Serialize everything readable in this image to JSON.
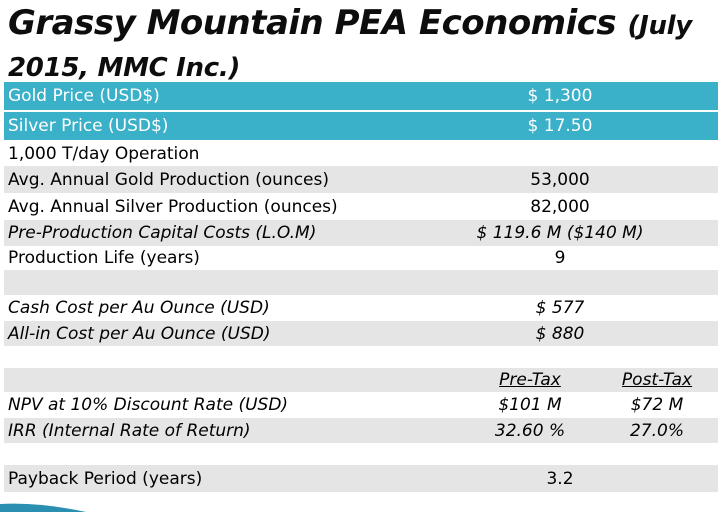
{
  "slide": {
    "title_line1": "Grassy Mountain PEA Economics",
    "title_suffix": "(July",
    "title_line2": "2015, MMC Inc.)"
  },
  "rows": {
    "gold_price": {
      "label": "Gold Price (USD$)",
      "value": "$ 1,300"
    },
    "silver_price": {
      "label": "Silver Price (USD$)",
      "value": "$ 17.50"
    },
    "operation": {
      "label": "1,000 T/day Operation"
    },
    "gold_production": {
      "label": "Avg. Annual Gold Production (ounces)",
      "value": "53,000"
    },
    "silver_production": {
      "label": "Avg. Annual Silver Production (ounces)",
      "value": "82,000"
    },
    "capital_costs": {
      "label": "Pre-Production Capital Costs (L.O.M)",
      "value": "$ 119.6 M  ($140 M)"
    },
    "production_life": {
      "label": "Production Life (years)",
      "value": "9"
    },
    "cash_cost": {
      "label": "Cash Cost per Au  Ounce (USD)",
      "value": "$ 577"
    },
    "all_in_cost": {
      "label": "All-in Cost per Au Ounce (USD)",
      "value": "$ 880"
    },
    "tax_headers": {
      "pre_tax": "Pre-Tax",
      "post_tax": "Post-Tax"
    },
    "npv": {
      "label": "NPV at 10% Discount Rate (USD)",
      "pre_tax": "$101 M",
      "post_tax": "$72 M"
    },
    "irr": {
      "label": "IRR (Internal Rate of Return)",
      "pre_tax": "32.60 %",
      "post_tax": "27.0%"
    },
    "payback": {
      "label": "Payback Period (years)",
      "value": "3.2"
    }
  },
  "colors": {
    "highlight": "#3ab0c9",
    "stripe": "#e5e5e5"
  }
}
